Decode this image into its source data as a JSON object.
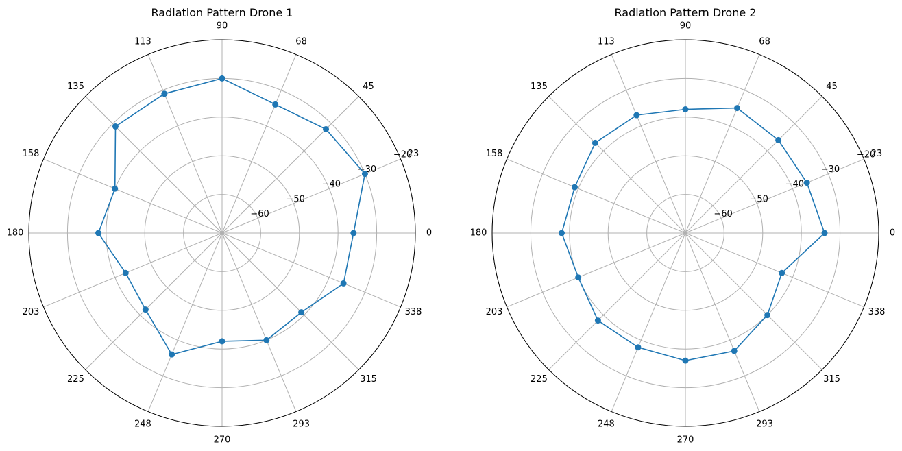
{
  "chart_data": [
    {
      "type": "polar-line",
      "title": "Radiation Pattern Drone 1",
      "theta_ticks": [
        "0",
        "23",
        "45",
        "68",
        "90",
        "113",
        "135",
        "158",
        "180",
        "203",
        "225",
        "248",
        "270",
        "293",
        "315",
        "338"
      ],
      "r_ticks": [
        "−60",
        "−50",
        "−40",
        "−30",
        "−20"
      ],
      "r_tick_values": [
        -60,
        -50,
        -40,
        -30,
        -20
      ],
      "rlim": [
        -70,
        -20
      ],
      "grid": true,
      "series": [
        {
          "color": "#1f77b4",
          "marker": "circle",
          "theta_deg": [
            0,
            22.5,
            45,
            67.5,
            90,
            112.5,
            135,
            157.5,
            180,
            202.5,
            225,
            247.5,
            270,
            292.5,
            315,
            337.5
          ],
          "values": [
            -36,
            -30,
            -32,
            -34,
            -30,
            -31,
            -31,
            -40,
            -38,
            -43,
            -42,
            -36,
            -42,
            -40,
            -41,
            -36
          ]
        }
      ]
    },
    {
      "type": "polar-line",
      "title": "Radiation Pattern Drone 2",
      "theta_ticks": [
        "0",
        "23",
        "45",
        "68",
        "90",
        "113",
        "135",
        "158",
        "180",
        "203",
        "225",
        "248",
        "270",
        "293",
        "315",
        "338"
      ],
      "r_ticks": [
        "−60",
        "−50",
        "−40",
        "−30",
        "−20"
      ],
      "r_tick_values": [
        -60,
        -50,
        -40,
        -30,
        -20
      ],
      "rlim": [
        -70,
        -20
      ],
      "grid": true,
      "series": [
        {
          "color": "#1f77b4",
          "marker": "circle",
          "theta_deg": [
            0,
            22.5,
            45,
            67.5,
            90,
            112.5,
            135,
            157.5,
            180,
            202.5,
            225,
            247.5,
            270,
            292.5,
            315,
            337.5
          ],
          "values": [
            -34,
            -36,
            -36,
            -35,
            -38,
            -37,
            -37,
            -39,
            -38,
            -40,
            -38,
            -38,
            -37,
            -37,
            -40,
            -43
          ]
        }
      ]
    }
  ]
}
